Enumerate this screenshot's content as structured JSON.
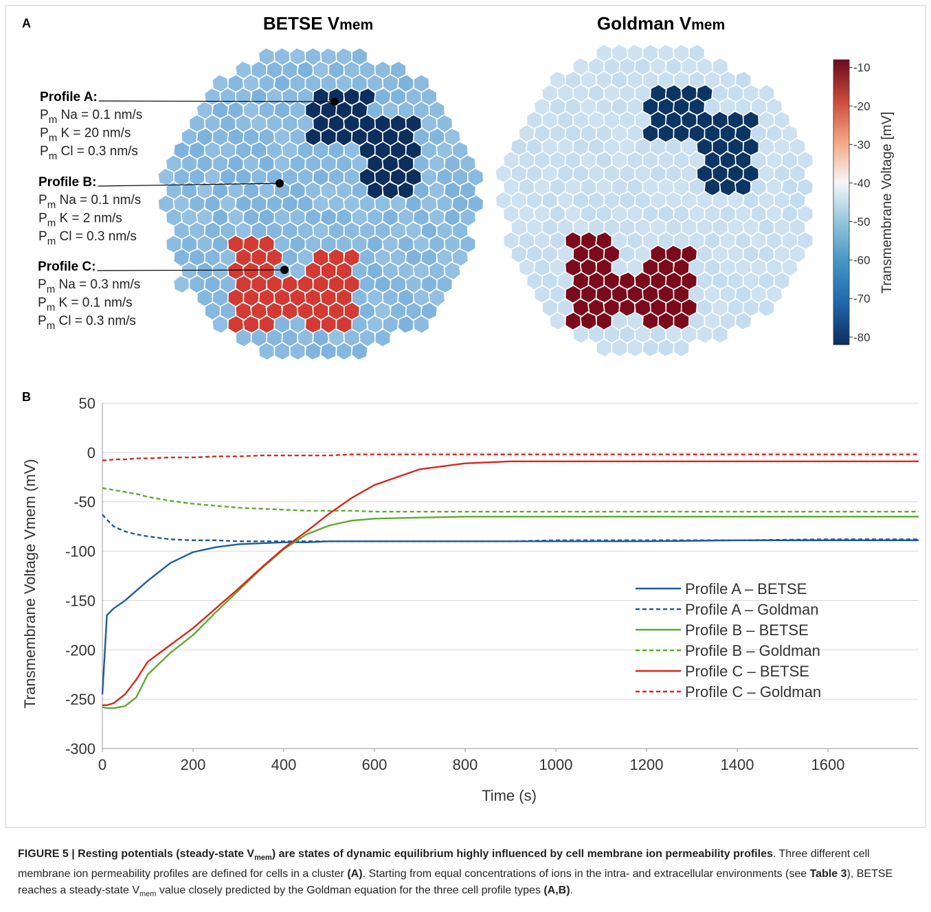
{
  "panel_a": {
    "label": "A",
    "maps": [
      {
        "title": "BETSE V",
        "title_sub": "mem",
        "colors": {
          "base": "#7cb2dd",
          "profile_a": "#0d2f5e",
          "profile_c": "#d23a33"
        }
      },
      {
        "title": "Goldman V",
        "title_sub": "mem",
        "colors": {
          "base": "#c4dcef",
          "profile_a": "#0c3563",
          "profile_c": "#7b0a1c"
        }
      }
    ],
    "profiles": [
      {
        "label": "Profile A:",
        "lines": [
          {
            "symbol": "P",
            "sub": "m",
            "text": " Na = 0.1 nm/s"
          },
          {
            "symbol": "P",
            "sub": "m",
            "text": " K = 20 nm/s"
          },
          {
            "symbol": "P",
            "sub": "m",
            "text": " Cl = 0.3 nm/s"
          }
        ]
      },
      {
        "label": "Profile B:",
        "lines": [
          {
            "symbol": "P",
            "sub": "m",
            "text": " Na = 0.1 nm/s"
          },
          {
            "symbol": "P",
            "sub": "m",
            "text": " K = 2 nm/s"
          },
          {
            "symbol": "P",
            "sub": "m",
            "text": " Cl = 0.3 nm/s"
          }
        ]
      },
      {
        "label": "Profile C:",
        "lines": [
          {
            "symbol": "P",
            "sub": "m",
            "text": " Na = 0.3 nm/s"
          },
          {
            "symbol": "P",
            "sub": "m",
            "text": " K = 0.1 nm/s"
          },
          {
            "symbol": "P",
            "sub": "m",
            "text": " Cl = 0.3 nm/s"
          }
        ]
      }
    ],
    "colorbar": {
      "label": "Transmembrane Voltage [mV]",
      "lim": [
        -82,
        -8
      ],
      "ticks": [
        -10,
        -20,
        -30,
        -40,
        -50,
        -60,
        -70,
        -80
      ],
      "colors": [
        "#6b0a1f",
        "#c94a3d",
        "#f4a582",
        "#f7f7f7",
        "#92c5de",
        "#4393c3",
        "#2166ac",
        "#0b2d5c"
      ]
    }
  },
  "chart_data": {
    "type": "line",
    "label": "B",
    "xlabel": "Time (s)",
    "ylabel": "Transmembrane Voltage Vmem (mV)",
    "x": [
      0,
      10,
      25,
      50,
      75,
      100,
      150,
      200,
      250,
      300,
      350,
      400,
      450,
      500,
      550,
      600,
      700,
      800,
      900,
      1000,
      1200,
      1400,
      1600,
      1800
    ],
    "xlim": [
      0,
      1800
    ],
    "xticks": [
      0,
      200,
      400,
      600,
      800,
      1000,
      1200,
      1400,
      1600
    ],
    "ylim": [
      -300,
      50
    ],
    "yticks": [
      50,
      0,
      -50,
      -100,
      -150,
      -200,
      -250,
      -300
    ],
    "grid": true,
    "legend": "lower right",
    "series": [
      {
        "name": "Profile A – BETSE",
        "color": "#1f5a9e",
        "linestyle": "solid",
        "values": [
          -245,
          -165,
          -158,
          -150,
          -140,
          -130,
          -112,
          -101,
          -96,
          -93,
          -92,
          -91,
          -91,
          -90,
          -90,
          -90,
          -90,
          -90,
          -90,
          -90,
          -90,
          -89,
          -89,
          -89
        ]
      },
      {
        "name": "Profile A – Goldman",
        "color": "#1f5a9e",
        "linestyle": "dashed",
        "values": [
          -63,
          -68,
          -75,
          -80,
          -83,
          -85,
          -88,
          -89,
          -89,
          -90,
          -90,
          -90,
          -90,
          -90,
          -90,
          -90,
          -90,
          -90,
          -90,
          -89,
          -89,
          -89,
          -88,
          -88
        ]
      },
      {
        "name": "Profile B – BETSE",
        "color": "#5ea930",
        "linestyle": "solid",
        "values": [
          -258,
          -259,
          -259,
          -257,
          -248,
          -225,
          -203,
          -185,
          -162,
          -140,
          -118,
          -98,
          -83,
          -74,
          -69,
          -67,
          -66,
          -65,
          -65,
          -65,
          -65,
          -65,
          -65,
          -65
        ]
      },
      {
        "name": "Profile B – Goldman",
        "color": "#5ea930",
        "linestyle": "dashed",
        "values": [
          -36,
          -37,
          -38,
          -40,
          -42,
          -45,
          -49,
          -52,
          -54,
          -56,
          -57,
          -58,
          -59,
          -59,
          -59,
          -60,
          -60,
          -60,
          -60,
          -60,
          -60,
          -60,
          -60,
          -60
        ]
      },
      {
        "name": "Profile C – BETSE",
        "color": "#d7261e",
        "linestyle": "solid",
        "values": [
          -256,
          -256,
          -254,
          -245,
          -230,
          -212,
          -195,
          -178,
          -158,
          -138,
          -117,
          -97,
          -80,
          -62,
          -46,
          -33,
          -17,
          -11,
          -9,
          -9,
          -9,
          -9,
          -9,
          -9
        ]
      },
      {
        "name": "Profile C – Goldman",
        "color": "#d7261e",
        "linestyle": "dashed",
        "values": [
          -8,
          -8,
          -7,
          -7,
          -6,
          -6,
          -5,
          -5,
          -4,
          -4,
          -3,
          -3,
          -3,
          -3,
          -2,
          -2,
          -2,
          -2,
          -2,
          -2,
          -2,
          -2,
          -2,
          -2
        ]
      }
    ]
  },
  "caption": {
    "runs": [
      "FIGURE 5 | Resting potentials (steady-state V",
      "mem",
      ") are states of dynamic equilibrium highly influenced by cell membrane ion permeability profiles",
      ". Three different cell membrane ion permeability profiles are defined for cells in a cluster ",
      "(A)",
      ". Starting from equal concentrations of ions in the intra- and extracellular environments (see ",
      "Table 3",
      "), BETSE reaches a steady-state V",
      "mem",
      " value closely predicted by the Goldman equation for the three cell profile types ",
      "(A,B)",
      "."
    ]
  }
}
